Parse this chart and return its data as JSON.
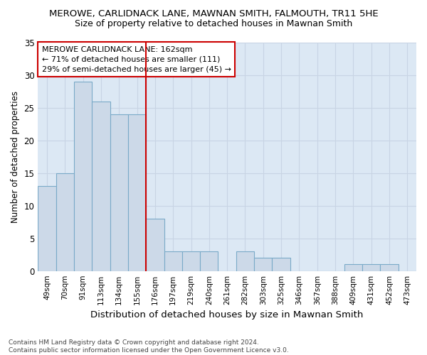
{
  "title": "MEROWE, CARLIDNACK LANE, MAWNAN SMITH, FALMOUTH, TR11 5HE",
  "subtitle": "Size of property relative to detached houses in Mawnan Smith",
  "xlabel": "Distribution of detached houses by size in Mawnan Smith",
  "ylabel": "Number of detached properties",
  "footer1": "Contains HM Land Registry data © Crown copyright and database right 2024.",
  "footer2": "Contains public sector information licensed under the Open Government Licence v3.0.",
  "categories": [
    "49sqm",
    "70sqm",
    "91sqm",
    "113sqm",
    "134sqm",
    "155sqm",
    "176sqm",
    "197sqm",
    "219sqm",
    "240sqm",
    "261sqm",
    "282sqm",
    "303sqm",
    "325sqm",
    "346sqm",
    "367sqm",
    "388sqm",
    "409sqm",
    "431sqm",
    "452sqm",
    "473sqm"
  ],
  "values": [
    13,
    15,
    29,
    26,
    24,
    24,
    8,
    3,
    3,
    3,
    0,
    3,
    2,
    2,
    0,
    0,
    0,
    1,
    1,
    1,
    0
  ],
  "bar_color": "#ccd9e8",
  "bar_edge_color": "#7aaac8",
  "bar_linewidth": 0.8,
  "grid_color": "#c8d4e4",
  "background_color": "#dce8f4",
  "annotation_text": "MEROWE CARLIDNACK LANE: 162sqm\n← 71% of detached houses are smaller (111)\n29% of semi-detached houses are larger (45) →",
  "vline_x_index": 5.5,
  "vline_color": "#cc0000",
  "ylim": [
    0,
    35
  ],
  "yticks": [
    0,
    5,
    10,
    15,
    20,
    25,
    30,
    35
  ]
}
